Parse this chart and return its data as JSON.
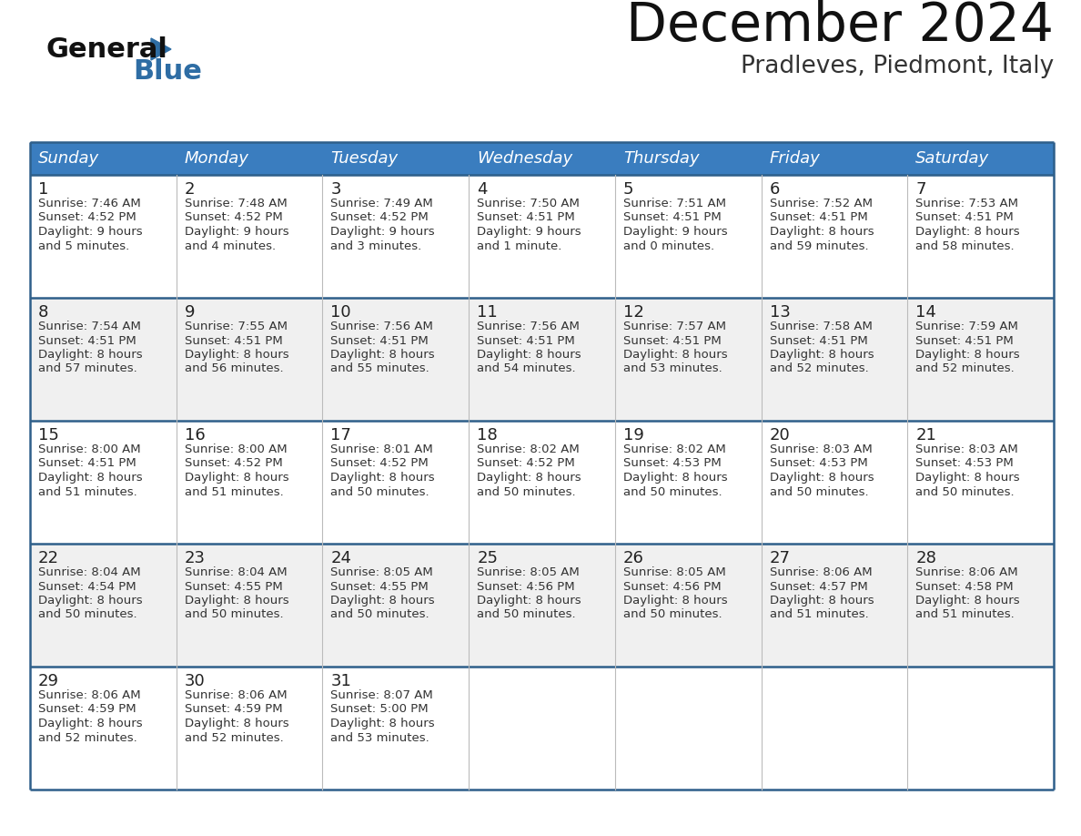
{
  "title": "December 2024",
  "subtitle": "Pradleves, Piedmont, Italy",
  "header_bg_color": "#3a7dbf",
  "header_text_color": "#ffffff",
  "days_of_week": [
    "Sunday",
    "Monday",
    "Tuesday",
    "Wednesday",
    "Thursday",
    "Friday",
    "Saturday"
  ],
  "row_bg_even": "#f0f0f0",
  "row_bg_odd": "#ffffff",
  "cell_border_color": "#2e5f8a",
  "text_color": "#333333",
  "day_num_color": "#222222",
  "logo_general_color": "#111111",
  "logo_blue_color": "#2e6da4",
  "logo_triangle_color": "#2e6da4",
  "calendar_data": [
    [
      {
        "day": 1,
        "sunrise": "7:46 AM",
        "sunset": "4:52 PM",
        "daylight": "9 hours and 5 minutes."
      },
      {
        "day": 2,
        "sunrise": "7:48 AM",
        "sunset": "4:52 PM",
        "daylight": "9 hours and 4 minutes."
      },
      {
        "day": 3,
        "sunrise": "7:49 AM",
        "sunset": "4:52 PM",
        "daylight": "9 hours and 3 minutes."
      },
      {
        "day": 4,
        "sunrise": "7:50 AM",
        "sunset": "4:51 PM",
        "daylight": "9 hours and 1 minute."
      },
      {
        "day": 5,
        "sunrise": "7:51 AM",
        "sunset": "4:51 PM",
        "daylight": "9 hours and 0 minutes."
      },
      {
        "day": 6,
        "sunrise": "7:52 AM",
        "sunset": "4:51 PM",
        "daylight": "8 hours and 59 minutes."
      },
      {
        "day": 7,
        "sunrise": "7:53 AM",
        "sunset": "4:51 PM",
        "daylight": "8 hours and 58 minutes."
      }
    ],
    [
      {
        "day": 8,
        "sunrise": "7:54 AM",
        "sunset": "4:51 PM",
        "daylight": "8 hours and 57 minutes."
      },
      {
        "day": 9,
        "sunrise": "7:55 AM",
        "sunset": "4:51 PM",
        "daylight": "8 hours and 56 minutes."
      },
      {
        "day": 10,
        "sunrise": "7:56 AM",
        "sunset": "4:51 PM",
        "daylight": "8 hours and 55 minutes."
      },
      {
        "day": 11,
        "sunrise": "7:56 AM",
        "sunset": "4:51 PM",
        "daylight": "8 hours and 54 minutes."
      },
      {
        "day": 12,
        "sunrise": "7:57 AM",
        "sunset": "4:51 PM",
        "daylight": "8 hours and 53 minutes."
      },
      {
        "day": 13,
        "sunrise": "7:58 AM",
        "sunset": "4:51 PM",
        "daylight": "8 hours and 52 minutes."
      },
      {
        "day": 14,
        "sunrise": "7:59 AM",
        "sunset": "4:51 PM",
        "daylight": "8 hours and 52 minutes."
      }
    ],
    [
      {
        "day": 15,
        "sunrise": "8:00 AM",
        "sunset": "4:51 PM",
        "daylight": "8 hours and 51 minutes."
      },
      {
        "day": 16,
        "sunrise": "8:00 AM",
        "sunset": "4:52 PM",
        "daylight": "8 hours and 51 minutes."
      },
      {
        "day": 17,
        "sunrise": "8:01 AM",
        "sunset": "4:52 PM",
        "daylight": "8 hours and 50 minutes."
      },
      {
        "day": 18,
        "sunrise": "8:02 AM",
        "sunset": "4:52 PM",
        "daylight": "8 hours and 50 minutes."
      },
      {
        "day": 19,
        "sunrise": "8:02 AM",
        "sunset": "4:53 PM",
        "daylight": "8 hours and 50 minutes."
      },
      {
        "day": 20,
        "sunrise": "8:03 AM",
        "sunset": "4:53 PM",
        "daylight": "8 hours and 50 minutes."
      },
      {
        "day": 21,
        "sunrise": "8:03 AM",
        "sunset": "4:53 PM",
        "daylight": "8 hours and 50 minutes."
      }
    ],
    [
      {
        "day": 22,
        "sunrise": "8:04 AM",
        "sunset": "4:54 PM",
        "daylight": "8 hours and 50 minutes."
      },
      {
        "day": 23,
        "sunrise": "8:04 AM",
        "sunset": "4:55 PM",
        "daylight": "8 hours and 50 minutes."
      },
      {
        "day": 24,
        "sunrise": "8:05 AM",
        "sunset": "4:55 PM",
        "daylight": "8 hours and 50 minutes."
      },
      {
        "day": 25,
        "sunrise": "8:05 AM",
        "sunset": "4:56 PM",
        "daylight": "8 hours and 50 minutes."
      },
      {
        "day": 26,
        "sunrise": "8:05 AM",
        "sunset": "4:56 PM",
        "daylight": "8 hours and 50 minutes."
      },
      {
        "day": 27,
        "sunrise": "8:06 AM",
        "sunset": "4:57 PM",
        "daylight": "8 hours and 51 minutes."
      },
      {
        "day": 28,
        "sunrise": "8:06 AM",
        "sunset": "4:58 PM",
        "daylight": "8 hours and 51 minutes."
      }
    ],
    [
      {
        "day": 29,
        "sunrise": "8:06 AM",
        "sunset": "4:59 PM",
        "daylight": "8 hours and 52 minutes."
      },
      {
        "day": 30,
        "sunrise": "8:06 AM",
        "sunset": "4:59 PM",
        "daylight": "8 hours and 52 minutes."
      },
      {
        "day": 31,
        "sunrise": "8:07 AM",
        "sunset": "5:00 PM",
        "daylight": "8 hours and 53 minutes."
      },
      null,
      null,
      null,
      null
    ]
  ]
}
